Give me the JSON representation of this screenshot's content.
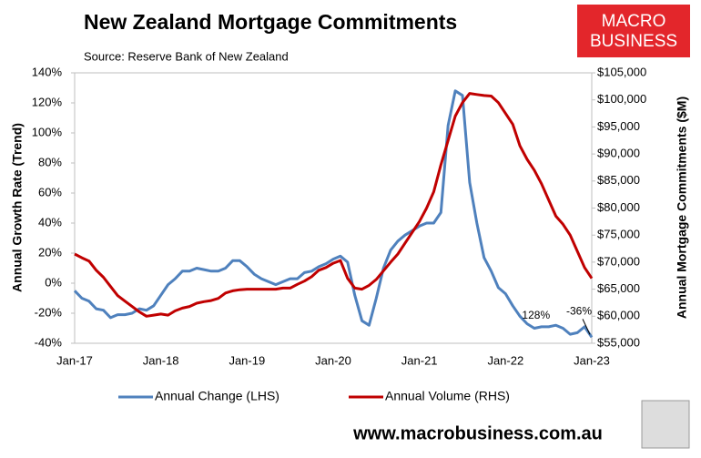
{
  "chart_data": {
    "type": "line",
    "title": "New Zealand Mortgage Commitments",
    "subtitle": "Source: Reserve Bank of New Zealand",
    "y_label": "Annual Growth Rate (Trend)",
    "y2_label": "Annual Mortgage Commitments ($M)",
    "logo": [
      "MACRO",
      "BUSINESS"
    ],
    "footer": "www.macrobusiness.com.au",
    "annotations": [
      {
        "text": "128%",
        "index": 65,
        "series": 0
      },
      {
        "text": "-36%",
        "index": 72,
        "series": 0
      }
    ],
    "categories": [
      "Jan-17",
      null,
      null,
      null,
      null,
      null,
      null,
      null,
      null,
      null,
      null,
      null,
      "Jan-18",
      null,
      null,
      null,
      null,
      null,
      null,
      null,
      null,
      null,
      null,
      null,
      "Jan-19",
      null,
      null,
      null,
      null,
      null,
      null,
      null,
      null,
      null,
      null,
      null,
      "Jan-20",
      null,
      null,
      null,
      null,
      null,
      null,
      null,
      null,
      null,
      null,
      null,
      "Jan-21",
      null,
      null,
      null,
      null,
      null,
      null,
      null,
      null,
      null,
      null,
      null,
      "Jan-22",
      null,
      null,
      null,
      null,
      null,
      null,
      null,
      null,
      null,
      null,
      null,
      "Jan-23"
    ],
    "series": [
      {
        "name": "Annual Change (LHS)",
        "color": "#4f81bd",
        "values": [
          -5,
          -10,
          -12,
          -17,
          -18,
          -23,
          -21,
          -21,
          -20,
          -17,
          -18,
          -15,
          -8,
          -1,
          3,
          8,
          8,
          10,
          9,
          8,
          8,
          10,
          15,
          15,
          11,
          6,
          3,
          1,
          -1,
          1,
          3,
          3,
          7,
          8,
          11,
          13,
          16,
          18,
          14,
          -8,
          -25,
          -28,
          -10,
          10,
          22,
          28,
          32,
          35,
          38,
          40,
          40,
          47,
          105,
          128,
          125,
          67,
          40,
          17,
          8,
          -3,
          -7,
          -15,
          -22,
          -27,
          -30,
          -29,
          -29,
          -28,
          -30,
          -34,
          -33,
          -29,
          -36
        ]
      },
      {
        "name": "Annual Volume (RHS)",
        "color": "#c00000",
        "axis": "y2",
        "values": [
          71500,
          70800,
          70200,
          68500,
          67200,
          65500,
          63800,
          62800,
          61800,
          60800,
          60000,
          60200,
          60400,
          60200,
          61000,
          61500,
          61800,
          62400,
          62700,
          62900,
          63300,
          64300,
          64700,
          64900,
          65000,
          65000,
          65000,
          65000,
          65000,
          65200,
          65200,
          65900,
          66500,
          67300,
          68500,
          69000,
          69800,
          70300,
          67000,
          65200,
          65000,
          65700,
          66800,
          68400,
          70000,
          71500,
          73500,
          75500,
          77500,
          80000,
          83000,
          88000,
          92500,
          97000,
          99500,
          101200,
          101000,
          100800,
          100700,
          99500,
          97500,
          95500,
          91500,
          89000,
          87000,
          84500,
          81500,
          78500,
          77000,
          75000,
          72000,
          69000,
          67000
        ]
      }
    ],
    "ylim": [
      -40,
      140
    ],
    "yticks": [
      {
        "value": -40,
        "label": "-40%"
      },
      {
        "value": -20,
        "label": "-20%"
      },
      {
        "value": 0,
        "label": "0%"
      },
      {
        "value": 20,
        "label": "20%"
      },
      {
        "value": 40,
        "label": "40%"
      },
      {
        "value": 60,
        "label": "60%"
      },
      {
        "value": 80,
        "label": "80%"
      },
      {
        "value": 100,
        "label": "100%"
      },
      {
        "value": 120,
        "label": "120%"
      },
      {
        "value": 140,
        "label": "140%"
      }
    ],
    "y2lim": [
      55000,
      105000
    ],
    "y2ticks": [
      {
        "value": 55000,
        "label": "$55,000"
      },
      {
        "value": 60000,
        "label": "$60,000"
      },
      {
        "value": 65000,
        "label": "$65,000"
      },
      {
        "value": 70000,
        "label": "$70,000"
      },
      {
        "value": 75000,
        "label": "$75,000"
      },
      {
        "value": 80000,
        "label": "$80,000"
      },
      {
        "value": 85000,
        "label": "$85,000"
      },
      {
        "value": 90000,
        "label": "$90,000"
      },
      {
        "value": 95000,
        "label": "$95,000"
      },
      {
        "value": 100000,
        "label": "$100,000"
      },
      {
        "value": 105000,
        "label": "$105,000"
      }
    ],
    "grid": false
  }
}
